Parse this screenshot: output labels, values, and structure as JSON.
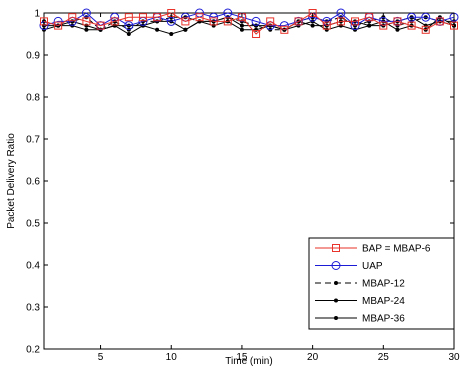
{
  "chart_data": {
    "type": "line",
    "title": "",
    "xlabel": "Time (min)",
    "ylabel": "Packet Delivery Ratio",
    "xlim": [
      1,
      30
    ],
    "ylim": [
      0.2,
      1.0
    ],
    "xticks": [
      5,
      10,
      15,
      20,
      25,
      30
    ],
    "yticks": [
      0.2,
      0.3,
      0.4,
      0.5,
      0.6,
      0.7,
      0.8,
      0.9,
      1
    ],
    "ytick_labels": [
      "0.2",
      "0.3",
      "0.4",
      "0.5",
      "0.6",
      "0.7",
      "0.8",
      "0.9",
      "1"
    ],
    "grid": false,
    "legend_position": "bottom-right",
    "x": [
      1,
      2,
      3,
      4,
      5,
      6,
      7,
      8,
      9,
      10,
      11,
      12,
      13,
      14,
      15,
      16,
      17,
      18,
      19,
      20,
      21,
      22,
      23,
      24,
      25,
      26,
      27,
      28,
      29,
      30
    ],
    "series": [
      {
        "name": "BAP = MBAP-6",
        "color": "#e8322a",
        "marker": "square",
        "dash": "solid",
        "values": [
          0.98,
          0.97,
          0.99,
          0.98,
          0.97,
          0.98,
          0.99,
          0.99,
          0.99,
          1.0,
          0.98,
          0.99,
          0.98,
          0.98,
          0.99,
          0.95,
          0.98,
          0.96,
          0.98,
          1.0,
          0.97,
          0.98,
          0.98,
          0.99,
          0.97,
          0.98,
          0.97,
          0.96,
          0.98,
          0.97
        ]
      },
      {
        "name": "UAP",
        "color": "#1c1cd6",
        "marker": "circle",
        "dash": "solid",
        "values": [
          0.97,
          0.98,
          0.98,
          1.0,
          0.97,
          0.99,
          0.97,
          0.98,
          0.99,
          0.98,
          0.99,
          1.0,
          0.99,
          1.0,
          0.99,
          0.98,
          0.97,
          0.97,
          0.98,
          0.99,
          0.98,
          1.0,
          0.97,
          0.99,
          0.98,
          0.98,
          0.99,
          0.99,
          0.98,
          0.99
        ]
      },
      {
        "name": "MBAP-12",
        "color": "#000000",
        "marker": "dot",
        "dash": "dashed",
        "values": [
          0.98,
          0.97,
          0.98,
          0.99,
          0.96,
          0.98,
          0.96,
          0.98,
          0.98,
          0.99,
          0.99,
          0.98,
          0.98,
          0.99,
          0.98,
          0.97,
          0.96,
          0.96,
          0.98,
          0.99,
          0.98,
          0.99,
          0.97,
          0.98,
          0.99,
          0.97,
          0.98,
          0.99,
          0.98,
          0.98
        ]
      },
      {
        "name": "MBAP-24",
        "color": "#000000",
        "marker": "dot",
        "dash": "solid",
        "values": [
          0.97,
          0.97,
          0.98,
          0.97,
          0.96,
          0.97,
          0.97,
          0.97,
          0.98,
          0.98,
          0.96,
          0.98,
          0.98,
          0.99,
          0.97,
          0.97,
          0.97,
          0.96,
          0.98,
          0.97,
          0.97,
          0.98,
          0.98,
          0.97,
          0.97,
          0.98,
          0.99,
          0.97,
          0.98,
          0.97
        ]
      },
      {
        "name": "MBAP-36",
        "color": "#000000",
        "marker": "dot",
        "dash": "solid",
        "values": [
          0.96,
          0.97,
          0.97,
          0.96,
          0.96,
          0.97,
          0.95,
          0.97,
          0.96,
          0.95,
          0.96,
          0.98,
          0.97,
          0.98,
          0.96,
          0.96,
          0.97,
          0.96,
          0.97,
          0.98,
          0.96,
          0.97,
          0.96,
          0.97,
          0.98,
          0.96,
          0.97,
          0.96,
          0.99,
          0.97
        ]
      }
    ]
  }
}
